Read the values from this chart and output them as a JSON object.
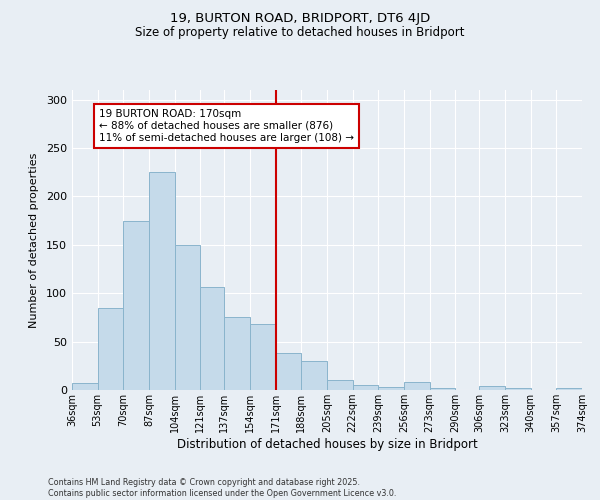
{
  "title": "19, BURTON ROAD, BRIDPORT, DT6 4JD",
  "subtitle": "Size of property relative to detached houses in Bridport",
  "xlabel": "Distribution of detached houses by size in Bridport",
  "ylabel": "Number of detached properties",
  "footer_line1": "Contains HM Land Registry data © Crown copyright and database right 2025.",
  "footer_line2": "Contains public sector information licensed under the Open Government Licence v3.0.",
  "annotation_line1": "19 BURTON ROAD: 170sqm",
  "annotation_line2": "← 88% of detached houses are smaller (876)",
  "annotation_line3": "11% of semi-detached houses are larger (108) →",
  "bin_edges": [
    36,
    53,
    70,
    87,
    104,
    121,
    137,
    154,
    171,
    188,
    205,
    222,
    239,
    256,
    273,
    290,
    306,
    323,
    340,
    357,
    374
  ],
  "bin_labels": [
    "36sqm",
    "53sqm",
    "70sqm",
    "87sqm",
    "104sqm",
    "121sqm",
    "137sqm",
    "154sqm",
    "171sqm",
    "188sqm",
    "205sqm",
    "222sqm",
    "239sqm",
    "256sqm",
    "273sqm",
    "290sqm",
    "306sqm",
    "323sqm",
    "340sqm",
    "357sqm",
    "374sqm"
  ],
  "counts": [
    7,
    85,
    175,
    225,
    150,
    106,
    75,
    68,
    38,
    30,
    10,
    5,
    3,
    8,
    2,
    0,
    4,
    2,
    0,
    2
  ],
  "bar_color": "#c5daea",
  "bar_edge_color": "#8ab4cc",
  "vline_color": "#cc0000",
  "vline_x": 171,
  "annotation_box_color": "#cc0000",
  "background_color": "#e8eef4",
  "grid_color": "#ffffff",
  "ylim": [
    0,
    310
  ],
  "yticks": [
    0,
    50,
    100,
    150,
    200,
    250,
    300
  ]
}
